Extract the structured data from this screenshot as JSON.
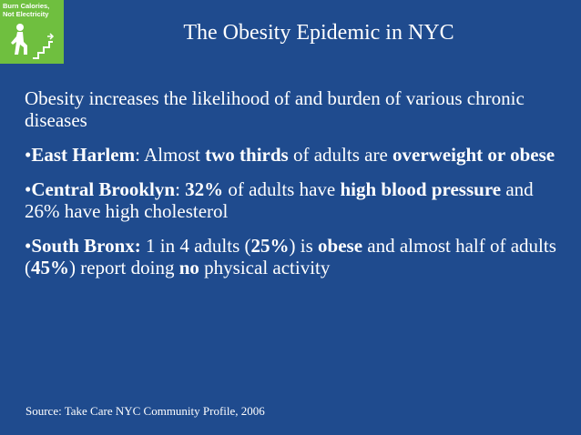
{
  "logo": {
    "line1": "Burn Calories,",
    "line2": "Not Electricity",
    "icon": "person-climbing-stairs-icon",
    "color": "#6fbf3f"
  },
  "title": "The Obesity Epidemic in NYC",
  "intro": "Obesity increases the likelihood of  and burden of  various chronic diseases",
  "bullets": [
    {
      "bullet": "•",
      "area": "East Harlem",
      "sep": ": ",
      "t1": "Almost ",
      "b1": "two thirds",
      "t2": " of adults are ",
      "b2": "overweight or obese"
    },
    {
      "bullet": "•",
      "area": "Central Brooklyn",
      "sep": ": ",
      "b1": "32%",
      "t1": " of adults have ",
      "b2": "high blood pressure",
      "t2": " and 26% have high cholesterol"
    },
    {
      "bullet": "•",
      "area": "South Bronx:",
      "t1": " 1 in 4 adults (",
      "b1": "25%",
      "t2": ") is ",
      "b2": "obese",
      "t3": " and almost half of adults (",
      "b3": "45%",
      "t4": ") report doing ",
      "b4": "no",
      "t5": " physical activity"
    }
  ],
  "source": "Source: Take Care NYC Community Profile, 2006",
  "colors": {
    "background": "#1f4b8e",
    "text": "#ffffff"
  }
}
